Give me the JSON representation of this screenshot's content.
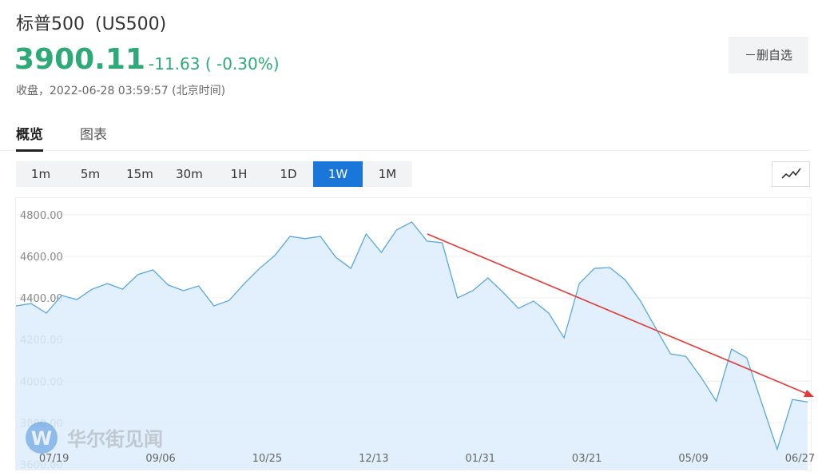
{
  "header": {
    "name": "标普500",
    "code": "(US500)",
    "price": "3900.11",
    "change": "-11.63",
    "change_pct": "( -0.30%)",
    "status": "收盘，2022-06-28 03:59:57 (北京时间)",
    "button": "－删自选"
  },
  "tabs": [
    "概览",
    "图表"
  ],
  "intervals": [
    "1m",
    "5m",
    "15m",
    "30m",
    "1H",
    "1D",
    "1W",
    "1M"
  ],
  "active_interval": "1W",
  "watermark": "华尔街见闻",
  "chart_data": {
    "type": "area",
    "categories": [
      null,
      null,
      null,
      "07/19",
      null,
      null,
      null,
      null,
      null,
      null,
      "09/06",
      null,
      null,
      null,
      null,
      null,
      null,
      "10/25",
      null,
      null,
      null,
      null,
      null,
      null,
      "12/13",
      null,
      null,
      null,
      null,
      null,
      null,
      "01/31",
      null,
      null,
      null,
      null,
      null,
      null,
      "03/21",
      null,
      null,
      null,
      null,
      null,
      null,
      "05/09",
      null,
      null,
      null,
      null,
      null,
      null,
      "06/27"
    ],
    "values": [
      4362,
      4373,
      4327,
      4412,
      4392,
      4442,
      4469,
      4442,
      4512,
      4535,
      4462,
      4435,
      4458,
      4362,
      4388,
      4469,
      4542,
      4604,
      4696,
      4685,
      4696,
      4596,
      4542,
      4708,
      4619,
      4727,
      4765,
      4673,
      4665,
      4400,
      4435,
      4496,
      4427,
      4350,
      4385,
      4327,
      4208,
      4469,
      4542,
      4546,
      4488,
      4388,
      4258,
      4131,
      4119,
      4019,
      3904,
      4154,
      4112,
      3892,
      3673,
      3912,
      3900
    ],
    "color": "#5aa7e0",
    "fill": "#dcedfc",
    "ylim": [
      3575,
      4880
    ],
    "yticks": [
      {
        "value": 3600,
        "label": "3600.00"
      },
      {
        "value": 3800,
        "label": "3800.00"
      },
      {
        "value": 4000,
        "label": "4000.00"
      },
      {
        "value": 4200,
        "label": "4200.00"
      },
      {
        "value": 4400,
        "label": "4400.00"
      },
      {
        "value": 4600,
        "label": "4600.00"
      },
      {
        "value": 4800,
        "label": "4800.00"
      }
    ],
    "grid": true
  }
}
